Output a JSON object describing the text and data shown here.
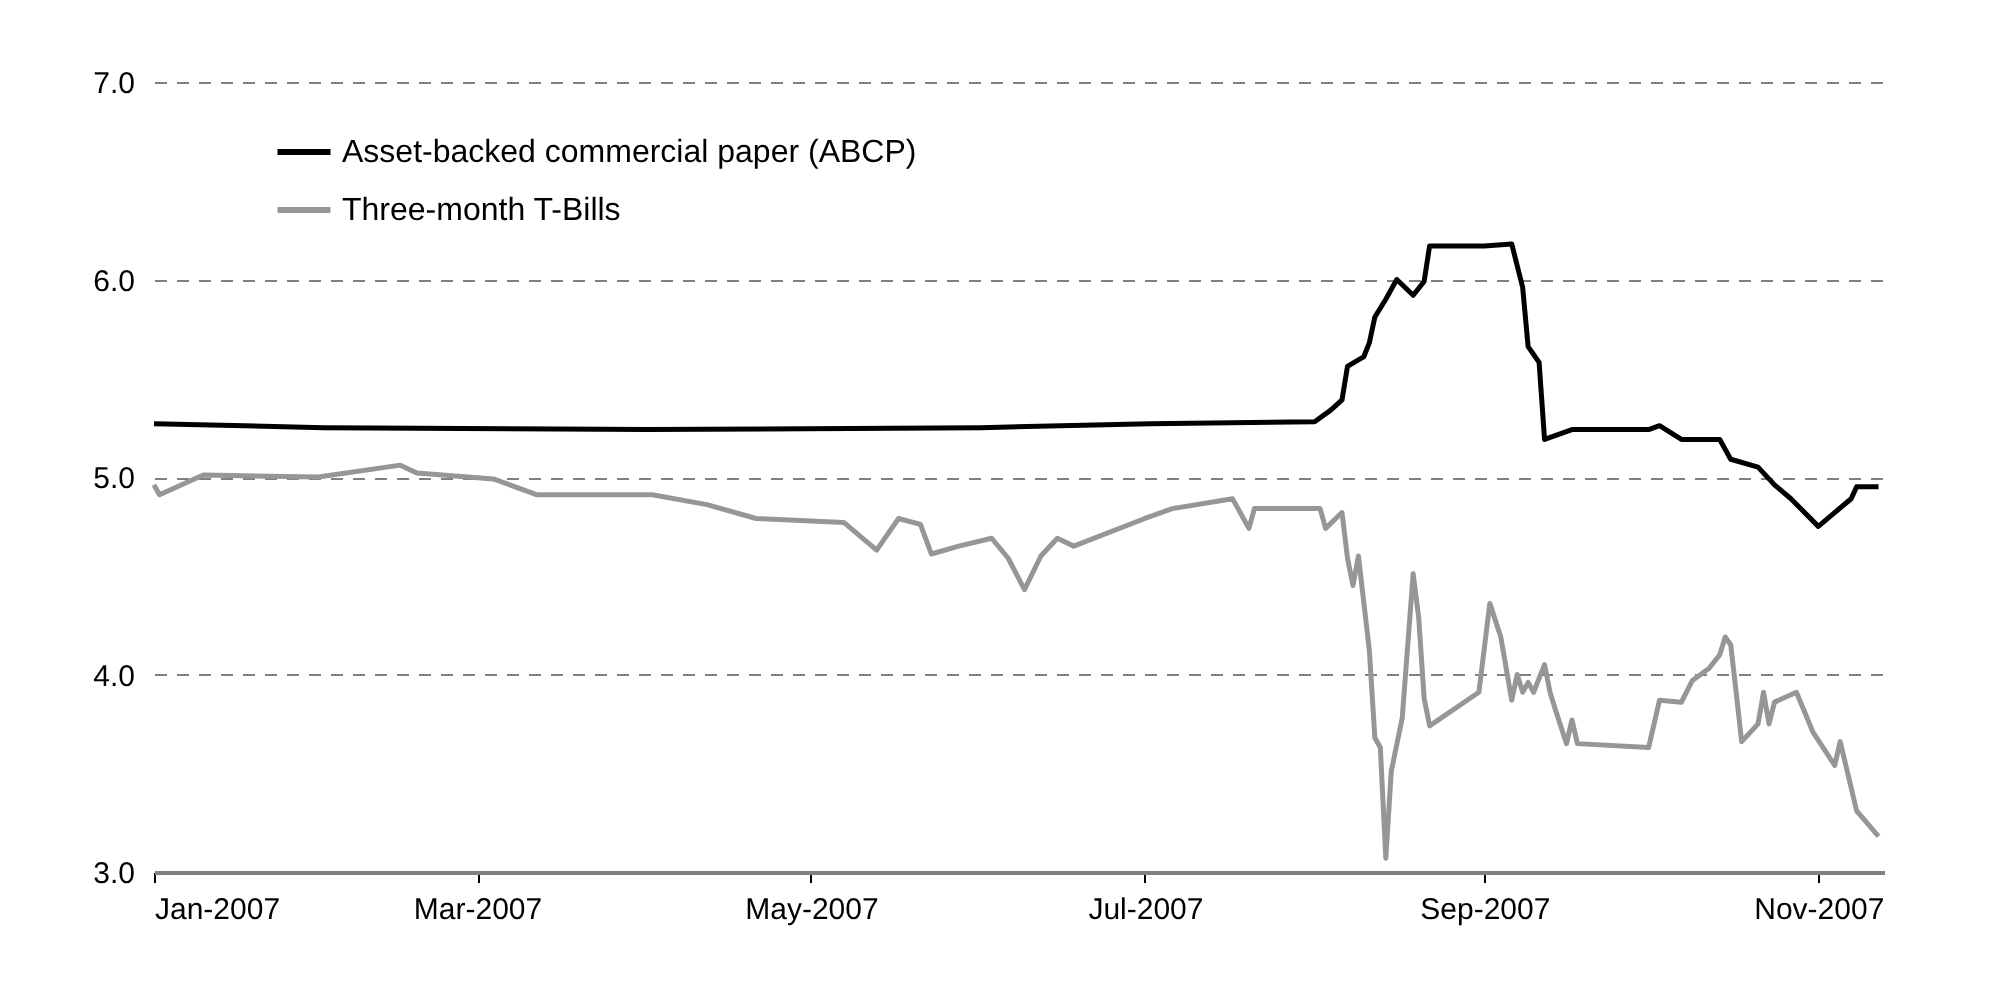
{
  "chart_data": {
    "type": "line",
    "x": [
      "2007-01-01",
      "2007-02-01",
      "2007-04-01",
      "2007-06-01",
      "2007-07-02",
      "2007-08-01",
      "2007-08-04",
      "2007-08-06",
      "2007-08-07",
      "2007-08-10",
      "2007-08-11",
      "2007-08-12",
      "2007-08-14",
      "2007-08-16",
      "2007-08-19",
      "2007-08-21",
      "2007-08-22",
      "2007-09-01",
      "2007-09-06",
      "2007-09-08",
      "2007-09-09",
      "2007-09-11",
      "2007-09-12",
      "2007-09-17",
      "2007-10-01",
      "2007-10-03",
      "2007-10-07",
      "2007-10-14",
      "2007-10-16",
      "2007-10-21",
      "2007-10-24",
      "2007-10-27",
      "2007-11-01",
      "2007-11-07",
      "2007-11-08",
      "2007-11-12"
    ],
    "series": [
      {
        "name": "Asset-backed commercial paper (ABCP)",
        "color": "#000000",
        "values": [
          5.27,
          5.25,
          5.24,
          5.25,
          5.27,
          5.28,
          5.34,
          5.39,
          5.56,
          5.61,
          5.68,
          5.81,
          5.9,
          6.0,
          5.92,
          5.99,
          6.17,
          6.17,
          6.18,
          5.96,
          5.66,
          5.58,
          5.19,
          5.24,
          5.24,
          5.26,
          5.19,
          5.19,
          5.09,
          5.05,
          4.96,
          4.89,
          4.75,
          4.89,
          4.95,
          4.95
        ]
      },
      {
        "name": "Three-month T-Bills",
        "color": "#969696",
        "x": [
          "2007-01-01",
          "2007-01-02",
          "2007-01-10",
          "2007-01-31",
          "2007-02-15",
          "2007-02-18",
          "2007-03-04",
          "2007-03-12",
          "2007-03-21",
          "2007-04-02",
          "2007-04-12",
          "2007-04-21",
          "2007-05-07",
          "2007-05-13",
          "2007-05-17",
          "2007-05-21",
          "2007-05-23",
          "2007-05-28",
          "2007-06-03",
          "2007-06-06",
          "2007-06-09",
          "2007-06-12",
          "2007-06-15",
          "2007-06-18",
          "2007-07-01",
          "2007-07-06",
          "2007-07-17",
          "2007-07-20",
          "2007-07-21",
          "2007-08-02",
          "2007-08-03",
          "2007-08-06",
          "2007-08-07",
          "2007-08-08",
          "2007-08-09",
          "2007-08-11",
          "2007-08-12",
          "2007-08-13",
          "2007-08-14",
          "2007-08-15",
          "2007-08-17",
          "2007-08-19",
          "2007-08-20",
          "2007-08-21",
          "2007-08-22",
          "2007-08-31",
          "2007-09-02",
          "2007-09-04",
          "2007-09-06",
          "2007-09-07",
          "2007-09-08",
          "2007-09-09",
          "2007-09-10",
          "2007-09-12",
          "2007-09-13",
          "2007-09-14",
          "2007-09-16",
          "2007-09-17",
          "2007-09-18",
          "2007-10-01",
          "2007-10-03",
          "2007-10-07",
          "2007-10-09",
          "2007-10-12",
          "2007-10-14",
          "2007-10-15",
          "2007-10-16",
          "2007-10-17",
          "2007-10-18",
          "2007-10-21",
          "2007-10-22",
          "2007-10-23",
          "2007-10-24",
          "2007-10-28",
          "2007-10-31",
          "2007-11-04",
          "2007-11-05",
          "2007-11-08",
          "2007-11-12"
        ],
        "values": [
          4.96,
          4.91,
          5.01,
          5.0,
          5.06,
          5.02,
          4.99,
          4.91,
          4.91,
          4.91,
          4.86,
          4.79,
          4.77,
          4.63,
          4.79,
          4.76,
          4.61,
          4.65,
          4.69,
          4.59,
          4.43,
          4.6,
          4.69,
          4.65,
          4.79,
          4.84,
          4.89,
          4.74,
          4.84,
          4.84,
          4.74,
          4.82,
          4.59,
          4.45,
          4.6,
          4.12,
          3.68,
          3.63,
          3.07,
          3.51,
          3.78,
          4.51,
          4.29,
          3.88,
          3.74,
          3.91,
          4.36,
          4.19,
          3.87,
          4.0,
          3.91,
          3.96,
          3.91,
          4.05,
          3.91,
          3.82,
          3.65,
          3.77,
          3.65,
          3.63,
          3.87,
          3.86,
          3.97,
          4.03,
          4.1,
          4.19,
          4.15,
          3.91,
          3.66,
          3.75,
          3.91,
          3.75,
          3.86,
          3.91,
          3.71,
          3.54,
          3.66,
          3.31,
          3.18
        ]
      }
    ],
    "xlim": [
      "2007-01-01",
      "2007-11-13"
    ],
    "xticks": [
      {
        "value": "2007-01-01",
        "label": "Jan-2007"
      },
      {
        "value": "2007-03-01",
        "label": "Mar-2007"
      },
      {
        "value": "2007-05-01",
        "label": "May-2007"
      },
      {
        "value": "2007-07-01",
        "label": "Jul-2007"
      },
      {
        "value": "2007-09-01",
        "label": "Sep-2007"
      },
      {
        "value": "2007-11-01",
        "label": "Nov-2007"
      }
    ],
    "ylim": [
      3,
      7
    ],
    "yticks": [
      {
        "value": 3,
        "label": "3.0"
      },
      {
        "value": 4,
        "label": "4.0"
      },
      {
        "value": 5,
        "label": "5.0"
      },
      {
        "value": 6,
        "label": "6.0"
      },
      {
        "value": 7,
        "label": "7.0"
      }
    ],
    "grid": "y",
    "legend": "top left",
    "line_style": "solid",
    "marker": "none"
  }
}
